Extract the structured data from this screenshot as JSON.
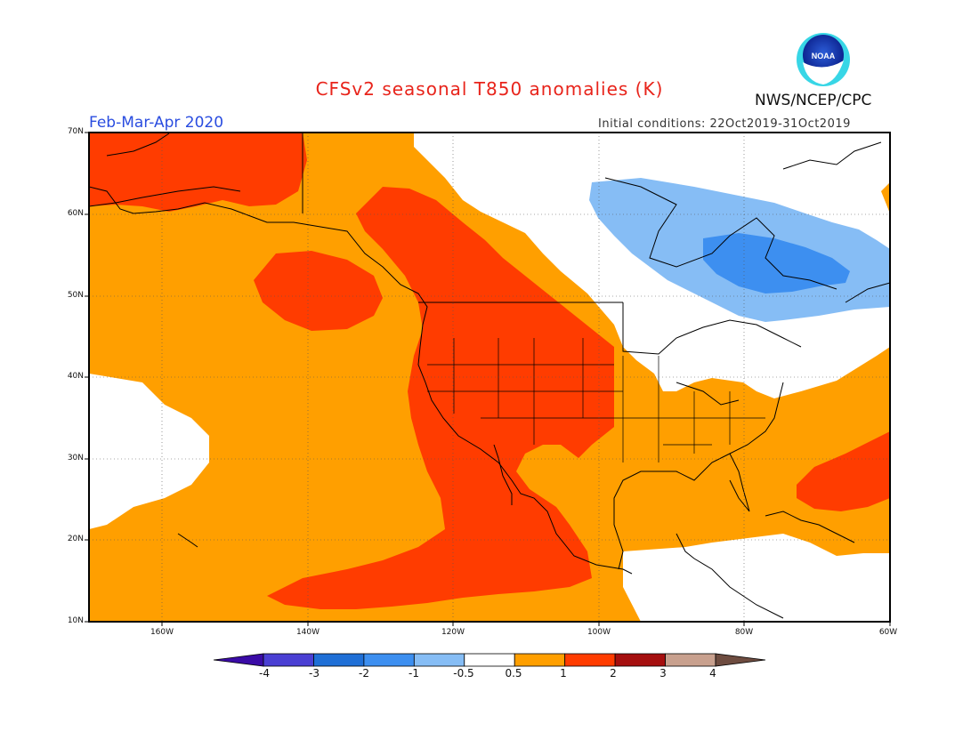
{
  "title": "CFSv2 seasonal T850 anomalies (K)",
  "agency": "NWS/NCEP/CPC",
  "logo_text": "NOAA",
  "period": "Feb-Mar-Apr 2020",
  "initial_conditions": "Initial conditions: 22Oct2019-31Oct2019",
  "lat_labels": [
    "70N",
    "60N",
    "50N",
    "40N",
    "30N",
    "20N",
    "10N"
  ],
  "lon_labels": [
    "160W",
    "140W",
    "120W",
    "100W",
    "80W",
    "60W"
  ],
  "colorbar": {
    "labels": [
      "-4",
      "-3",
      "-2",
      "-1",
      "-0.5",
      "0.5",
      "1",
      "2",
      "3",
      "4"
    ],
    "colors": [
      "#3a0ba6",
      "#4a3fd3",
      "#1f6fd6",
      "#3d8ff0",
      "#86bdf5",
      "#ffffff",
      "#ff9f00",
      "#ff3c00",
      "#a50f0f",
      "#c8a08e",
      "#6e4c40"
    ]
  },
  "map_colors": {
    "land_outline": "#000000",
    "grid": "#666666",
    "strong_warm": "#ff3c00",
    "warm": "#ff9f00",
    "neutral": "#ffffff",
    "cool": "#86bdf5",
    "cooler": "#3d8ff0"
  }
}
